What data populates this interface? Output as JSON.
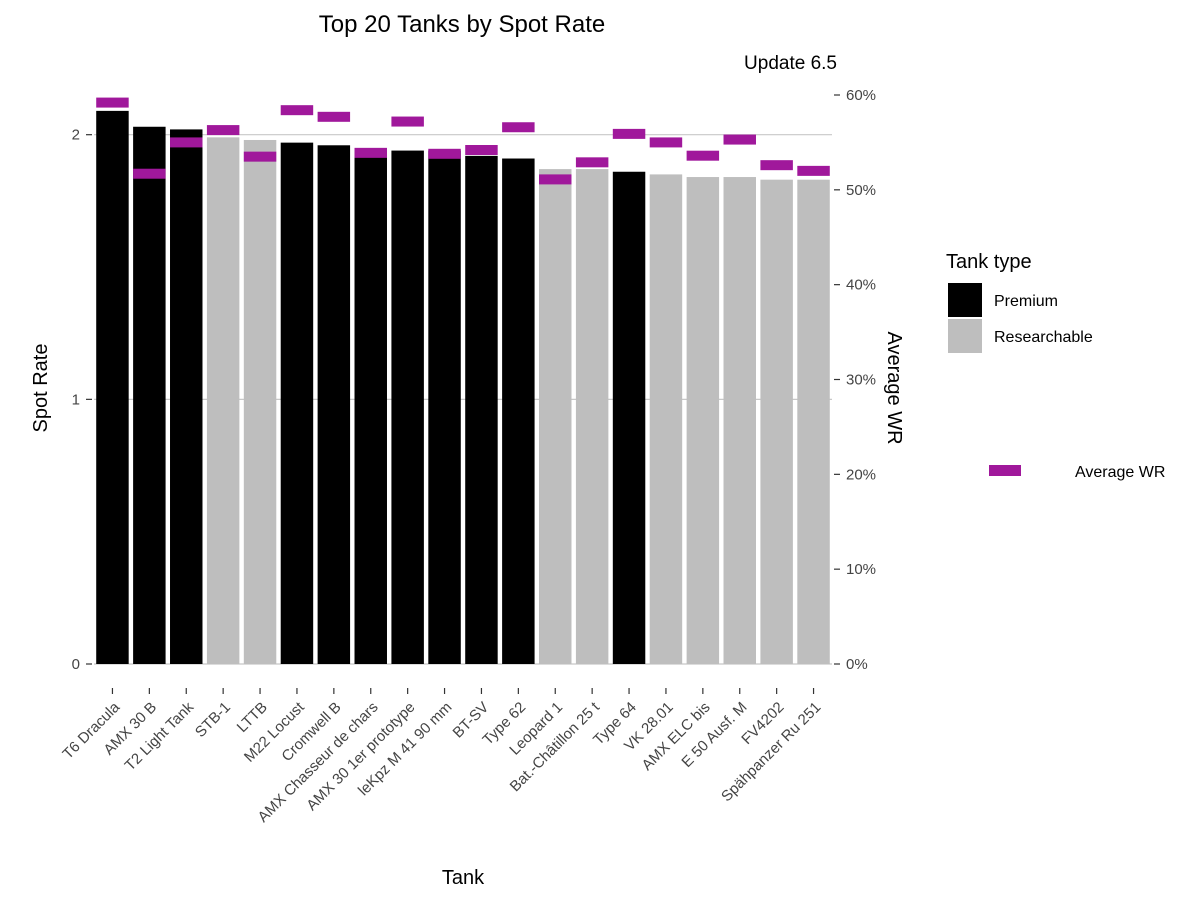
{
  "chart_data": {
    "type": "bar",
    "title": "Top 20 Tanks by Spot Rate",
    "subtitle": "Update 6.5",
    "xlabel": "Tank",
    "ylabel": "Spot Rate",
    "y2label": "Average WR",
    "ylim": [
      0,
      2.15
    ],
    "y2lim": [
      0,
      0.6
    ],
    "yticks": [
      "0",
      "1",
      "2"
    ],
    "y2ticks": [
      "0%",
      "10%",
      "20%",
      "30%",
      "40%",
      "50%",
      "60%"
    ],
    "grid": "horizontal",
    "legend": {
      "title": "Tank type",
      "items": [
        {
          "label": "Premium",
          "color": "#000000"
        },
        {
          "label": "Researchable",
          "color": "#bebebe"
        }
      ],
      "wr_label": "Average WR",
      "wr_color": "#a0189b",
      "placement": "right"
    },
    "categories": [
      "T6 Dracula",
      "AMX 30 B",
      "T2 Light Tank",
      "STB-1",
      "LTTB",
      "M22 Locust",
      "Cromwell B",
      "AMX Chasseur de chars",
      "AMX 30 1er prototype",
      "leKpz M 41 90 mm",
      "BT-SV",
      "Type 62",
      "Leopard 1",
      "Bat.-Châtillon 25 t",
      "Type 64",
      "VK 28.01",
      "AMX ELC bis",
      "E 50 Ausf. M",
      "FV4202",
      "Spähpanzer Ru 251"
    ],
    "series": [
      {
        "name": "Spot Rate",
        "type": "bar",
        "values": [
          2.09,
          2.03,
          2.02,
          1.99,
          1.98,
          1.97,
          1.96,
          1.94,
          1.94,
          1.94,
          1.92,
          1.91,
          1.87,
          1.87,
          1.86,
          1.85,
          1.84,
          1.84,
          1.83,
          1.83
        ],
        "tank_type": [
          "Premium",
          "Premium",
          "Premium",
          "Researchable",
          "Researchable",
          "Premium",
          "Premium",
          "Premium",
          "Premium",
          "Premium",
          "Premium",
          "Premium",
          "Researchable",
          "Researchable",
          "Premium",
          "Researchable",
          "Researchable",
          "Researchable",
          "Researchable",
          "Researchable"
        ]
      },
      {
        "name": "Average WR",
        "type": "marker",
        "values": [
          0.592,
          0.517,
          0.55,
          0.563,
          0.535,
          0.584,
          0.577,
          0.539,
          0.572,
          0.538,
          0.542,
          0.566,
          0.511,
          0.529,
          0.559,
          0.55,
          0.536,
          0.553,
          0.526,
          0.52
        ]
      }
    ]
  }
}
